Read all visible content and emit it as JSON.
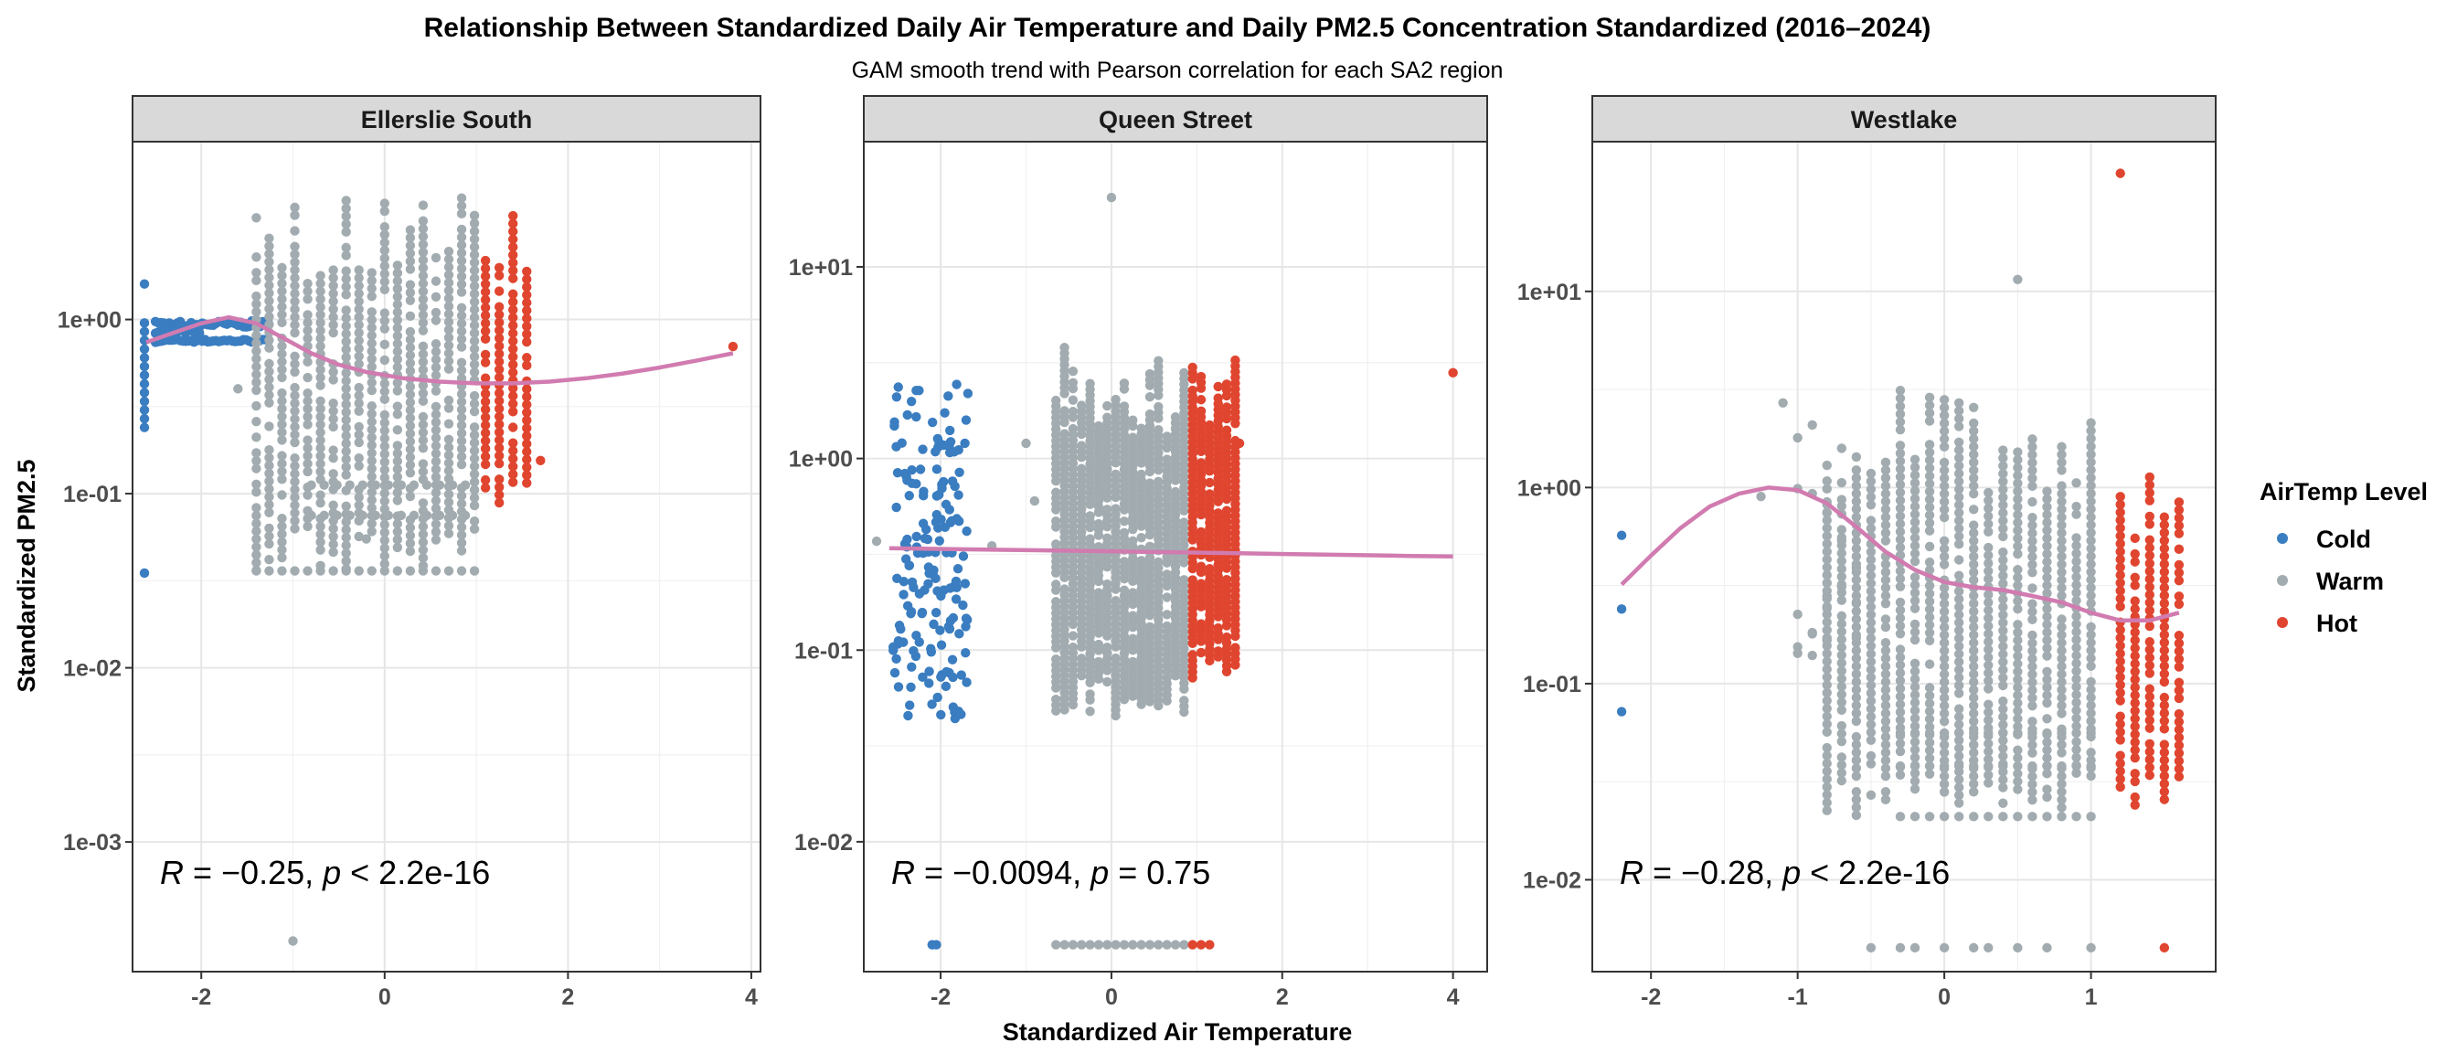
{
  "chart_data": {
    "type": "scatter",
    "title": "Relationship Between Standardized Daily Air Temperature and Daily PM2.5 Concentration Standardized (2016–2024)",
    "subtitle": "GAM smooth trend with Pearson correlation for each SA2 region",
    "xlabel": "Standardized Air Temperature",
    "ylabel": "Standardized PM2.5",
    "y_scale": "log10",
    "grid": true,
    "legend": {
      "title": "AirTemp Level",
      "position": "right",
      "items": [
        {
          "name": "Cold",
          "color": "#3A7DC0"
        },
        {
          "name": "Warm",
          "color": "#A2ACB0"
        },
        {
          "name": "Hot",
          "color": "#E0452F"
        }
      ]
    },
    "colors": {
      "Cold": "#3A7DC0",
      "Warm": "#A2ACB0",
      "Hot": "#E0452F",
      "smooth": "#D17BB0"
    },
    "panels": [
      {
        "name": "Ellerslie South",
        "annotation": {
          "r_label": "R",
          "r_text": " = −0.25, ",
          "p_label": "p",
          "p_text": " < 2.2e-16"
        },
        "xlim": [
          -2.75,
          4.1
        ],
        "ylim": [
          0.00018,
          10.5
        ],
        "x_ticks": [
          -2,
          0,
          2,
          4
        ],
        "y_ticks": [
          0.001,
          0.01,
          0.1,
          1
        ],
        "y_tick_labels": [
          "1e-03",
          "1e-02",
          "1e-01",
          "1e+00"
        ],
        "smooth": [
          [
            -2.6,
            0.74
          ],
          [
            -2.3,
            0.84
          ],
          [
            -2.0,
            0.95
          ],
          [
            -1.7,
            1.03
          ],
          [
            -1.4,
            0.95
          ],
          [
            -1.1,
            0.78
          ],
          [
            -0.8,
            0.64
          ],
          [
            -0.5,
            0.55
          ],
          [
            -0.2,
            0.5
          ],
          [
            0.2,
            0.46
          ],
          [
            0.6,
            0.44
          ],
          [
            1.0,
            0.43
          ],
          [
            1.4,
            0.43
          ],
          [
            1.8,
            0.44
          ],
          [
            2.2,
            0.46
          ],
          [
            2.6,
            0.49
          ],
          [
            3.0,
            0.53
          ],
          [
            3.4,
            0.58
          ],
          [
            3.8,
            0.64
          ]
        ],
        "outliers": [
          {
            "x": -2.62,
            "y": 0.035,
            "level": "Cold"
          },
          {
            "x": -2.62,
            "y": 1.6,
            "level": "Cold"
          },
          {
            "x": -0.2,
            "y": 0.055,
            "level": "Warm"
          },
          {
            "x": -1.0,
            "y": 0.00027,
            "level": "Warm"
          },
          {
            "x": -1.6,
            "y": 0.4,
            "level": "Warm"
          },
          {
            "x": 1.7,
            "y": 0.155,
            "level": "Hot"
          },
          {
            "x": 3.8,
            "y": 0.7,
            "level": "Hot"
          }
        ],
        "cold": {
          "x_min": -2.62,
          "x_max": -1.95,
          "y_min": 0.24,
          "y_max": 0.97
        },
        "warm": {
          "x_min": -1.4,
          "x_max": 1.0,
          "y_min": 0.036,
          "y_max": 5.5
        },
        "hot": {
          "x_min": 1.1,
          "x_max": 1.55,
          "y_min": 0.075,
          "y_max": 4.5
        }
      },
      {
        "name": "Queen Street",
        "annotation": {
          "r_label": "R",
          "r_text": " = −0.0094, ",
          "p_label": "p",
          "p_text": " = 0.75"
        },
        "xlim": [
          -2.9,
          4.4
        ],
        "ylim": [
          0.0021,
          45
        ],
        "x_ticks": [
          -2,
          0,
          2,
          4
        ],
        "y_ticks": [
          0.01,
          0.1,
          1,
          10
        ],
        "y_tick_labels": [
          "1e-02",
          "1e-01",
          "1e+00",
          "1e+01"
        ],
        "smooth": [
          [
            -2.6,
            0.34
          ],
          [
            -1.5,
            0.335
          ],
          [
            -0.5,
            0.33
          ],
          [
            0.5,
            0.325
          ],
          [
            1.5,
            0.32
          ],
          [
            2.5,
            0.315
          ],
          [
            3.5,
            0.31
          ],
          [
            4.0,
            0.308
          ]
        ],
        "outliers": [
          {
            "x": 0.0,
            "y": 23.0,
            "level": "Warm"
          },
          {
            "x": 4.0,
            "y": 2.8,
            "level": "Hot"
          },
          {
            "x": -2.75,
            "y": 0.37,
            "level": "Warm"
          },
          {
            "x": -1.0,
            "y": 1.2,
            "level": "Warm"
          },
          {
            "x": -0.9,
            "y": 0.6,
            "level": "Warm"
          },
          {
            "x": 1.5,
            "y": 1.2,
            "level": "Hot"
          },
          {
            "x": -1.4,
            "y": 0.35,
            "level": "Warm"
          }
        ],
        "cold": {
          "x_min": -2.55,
          "x_max": -1.7,
          "y_min": 0.043,
          "y_max": 2.5
        },
        "warm": {
          "x_min": -0.65,
          "x_max": 0.9,
          "y_min": 0.043,
          "y_max": 4.0
        },
        "hot": {
          "x_min": 0.95,
          "x_max": 1.45,
          "y_min": 0.07,
          "y_max": 4.3
        },
        "floor_points": {
          "y": 0.0029,
          "warm_x": [
            -0.65,
            -0.55,
            -0.45,
            -0.35,
            -0.25,
            -0.15,
            -0.05,
            0.05,
            0.15,
            0.25,
            0.35,
            0.45,
            0.55,
            0.65,
            0.75,
            0.85
          ],
          "hot_x": [
            0.95,
            1.05,
            1.15
          ],
          "cold_x": [
            -2.1,
            -2.05
          ]
        }
      },
      {
        "name": "Westlake",
        "annotation": {
          "r_label": "R",
          "r_text": " = −0.28, ",
          "p_label": "p",
          "p_text": " < 2.2e-16"
        },
        "xlim": [
          -2.4,
          1.85
        ],
        "ylim": [
          0.0034,
          58
        ],
        "x_ticks": [
          -2,
          -1,
          0,
          1
        ],
        "y_ticks": [
          0.01,
          0.1,
          1,
          10
        ],
        "y_tick_labels": [
          "1e-02",
          "1e-01",
          "1e+00",
          "1e+01"
        ],
        "smooth": [
          [
            -2.2,
            0.32
          ],
          [
            -2.0,
            0.45
          ],
          [
            -1.8,
            0.62
          ],
          [
            -1.6,
            0.8
          ],
          [
            -1.4,
            0.93
          ],
          [
            -1.2,
            1.0
          ],
          [
            -1.0,
            0.97
          ],
          [
            -0.8,
            0.83
          ],
          [
            -0.6,
            0.63
          ],
          [
            -0.4,
            0.47
          ],
          [
            -0.2,
            0.38
          ],
          [
            0.0,
            0.33
          ],
          [
            0.2,
            0.31
          ],
          [
            0.4,
            0.3
          ],
          [
            0.6,
            0.28
          ],
          [
            0.8,
            0.26
          ],
          [
            1.0,
            0.23
          ],
          [
            1.2,
            0.21
          ],
          [
            1.4,
            0.21
          ],
          [
            1.6,
            0.23
          ]
        ],
        "outliers": [
          {
            "x": -2.2,
            "y": 0.57,
            "level": "Cold"
          },
          {
            "x": -2.2,
            "y": 0.24,
            "level": "Cold"
          },
          {
            "x": -2.2,
            "y": 0.072,
            "level": "Cold"
          },
          {
            "x": 1.2,
            "y": 40.0,
            "level": "Hot"
          },
          {
            "x": 0.5,
            "y": 11.5,
            "level": "Warm"
          },
          {
            "x": -1.1,
            "y": 2.7,
            "level": "Warm"
          },
          {
            "x": -1.25,
            "y": 0.9,
            "level": "Warm"
          },
          {
            "x": 1.5,
            "y": 0.0045,
            "level": "Hot"
          }
        ],
        "cold": null,
        "warm": {
          "x_min": -0.8,
          "x_max": 1.0,
          "y_min": 0.021,
          "y_max": 3.3
        },
        "hot": {
          "x_min": 1.2,
          "x_max": 1.65,
          "y_min": 0.021,
          "y_max": 1.3
        },
        "floor_points": {
          "y": 0.0045,
          "warm_x": [
            -0.5,
            -0.3,
            -0.2,
            0.0,
            0.2,
            0.3,
            0.5,
            0.7,
            1.0
          ],
          "hot_x": [],
          "cold_x": []
        }
      }
    ]
  }
}
